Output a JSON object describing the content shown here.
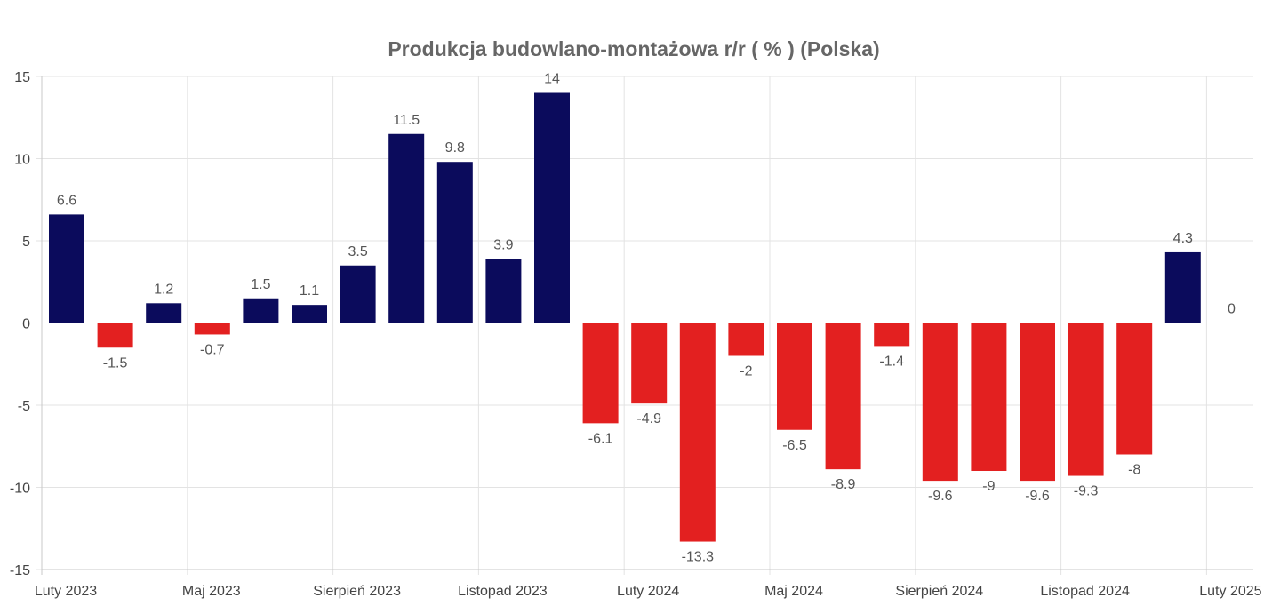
{
  "chart_data": {
    "type": "bar",
    "title": "Produkcja budowlano-montażowa r/r ( % ) (Polska)",
    "xlabel": "",
    "ylabel": "",
    "ylim": [
      -15,
      15
    ],
    "y_ticks": [
      "15",
      "10",
      "5",
      "0",
      "-5",
      "-10",
      "-15"
    ],
    "x_tick_labels": [
      "Luty 2023",
      "Maj 2023",
      "Sierpień 2023",
      "Listopad 2023",
      "Luty 2024",
      "Maj 2024",
      "Sierpień 2024",
      "Listopad 2024",
      "Luty 2025"
    ],
    "grid": true,
    "legend": "none",
    "colors": {
      "positive": "#0b0b5c",
      "negative": "#e32020",
      "grid": "#e3e3e3",
      "axis": "#c8c8c8"
    },
    "categories": [
      "2023-02",
      "2023-03",
      "2023-04",
      "2023-05",
      "2023-06",
      "2023-07",
      "2023-08",
      "2023-09",
      "2023-10",
      "2023-11",
      "2023-12",
      "2024-01",
      "2024-02",
      "2024-03",
      "2024-04",
      "2024-05",
      "2024-06",
      "2024-07",
      "2024-08",
      "2024-09",
      "2024-10",
      "2024-11",
      "2024-12",
      "2025-01",
      "2025-02"
    ],
    "values": [
      6.6,
      -1.5,
      1.2,
      -0.7,
      1.5,
      1.1,
      3.5,
      11.5,
      9.8,
      3.9,
      14,
      -6.1,
      -4.9,
      -13.3,
      -2,
      -6.5,
      -8.9,
      -1.4,
      -9.6,
      -9,
      -9.6,
      -9.3,
      -8,
      4.3,
      0
    ],
    "data_labels": [
      "6.6",
      "-1.5",
      "1.2",
      "-0.7",
      "1.5",
      "1.1",
      "3.5",
      "11.5",
      "9.8",
      "3.9",
      "14",
      "-6.1",
      "-4.9",
      "-13.3",
      "-2",
      "-6.5",
      "-8.9",
      "-1.4",
      "-9.6",
      "-9",
      "-9.6",
      "-9.3",
      "-8",
      "4.3",
      "0"
    ]
  }
}
